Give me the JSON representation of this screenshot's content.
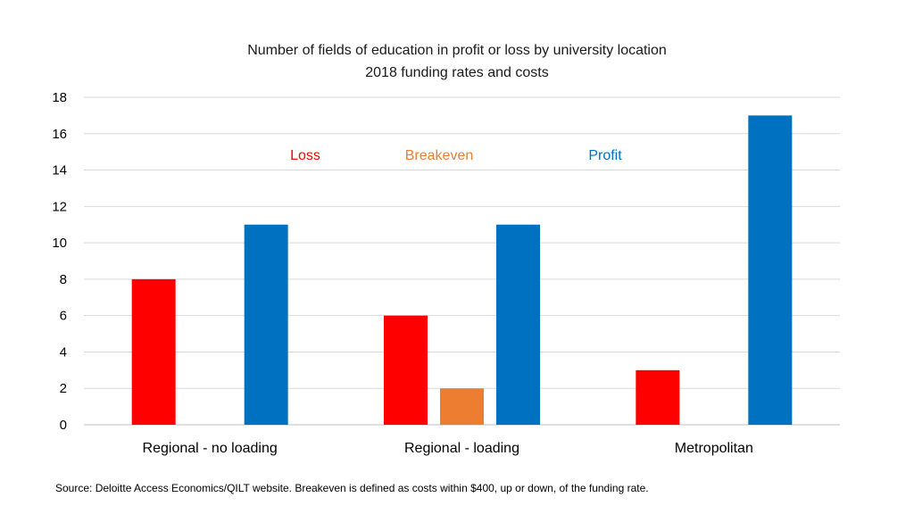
{
  "chart_data": {
    "type": "bar",
    "title": "Number of fields of education in profit or loss by university location",
    "subtitle": "2018 funding rates and costs",
    "categories": [
      "Regional - no loading",
      "Regional - loading",
      "Metropolitan"
    ],
    "series": [
      {
        "name": "Loss",
        "color": "#ff0000",
        "values": [
          8,
          6,
          3
        ]
      },
      {
        "name": "Breakeven",
        "color": "#ed7d31",
        "values": [
          0,
          2,
          0
        ]
      },
      {
        "name": "Profit",
        "color": "#0070c0",
        "values": [
          11,
          11,
          17
        ]
      }
    ],
    "ylim": [
      0,
      18
    ],
    "yticks": [
      0,
      2,
      4,
      6,
      8,
      10,
      12,
      14,
      16,
      18
    ],
    "grid": true,
    "legend_position": "top-center",
    "source": "Source: Deloitte Access Economics/QILT website. Breakeven is defined as costs within $400, up or down, of the funding rate."
  }
}
